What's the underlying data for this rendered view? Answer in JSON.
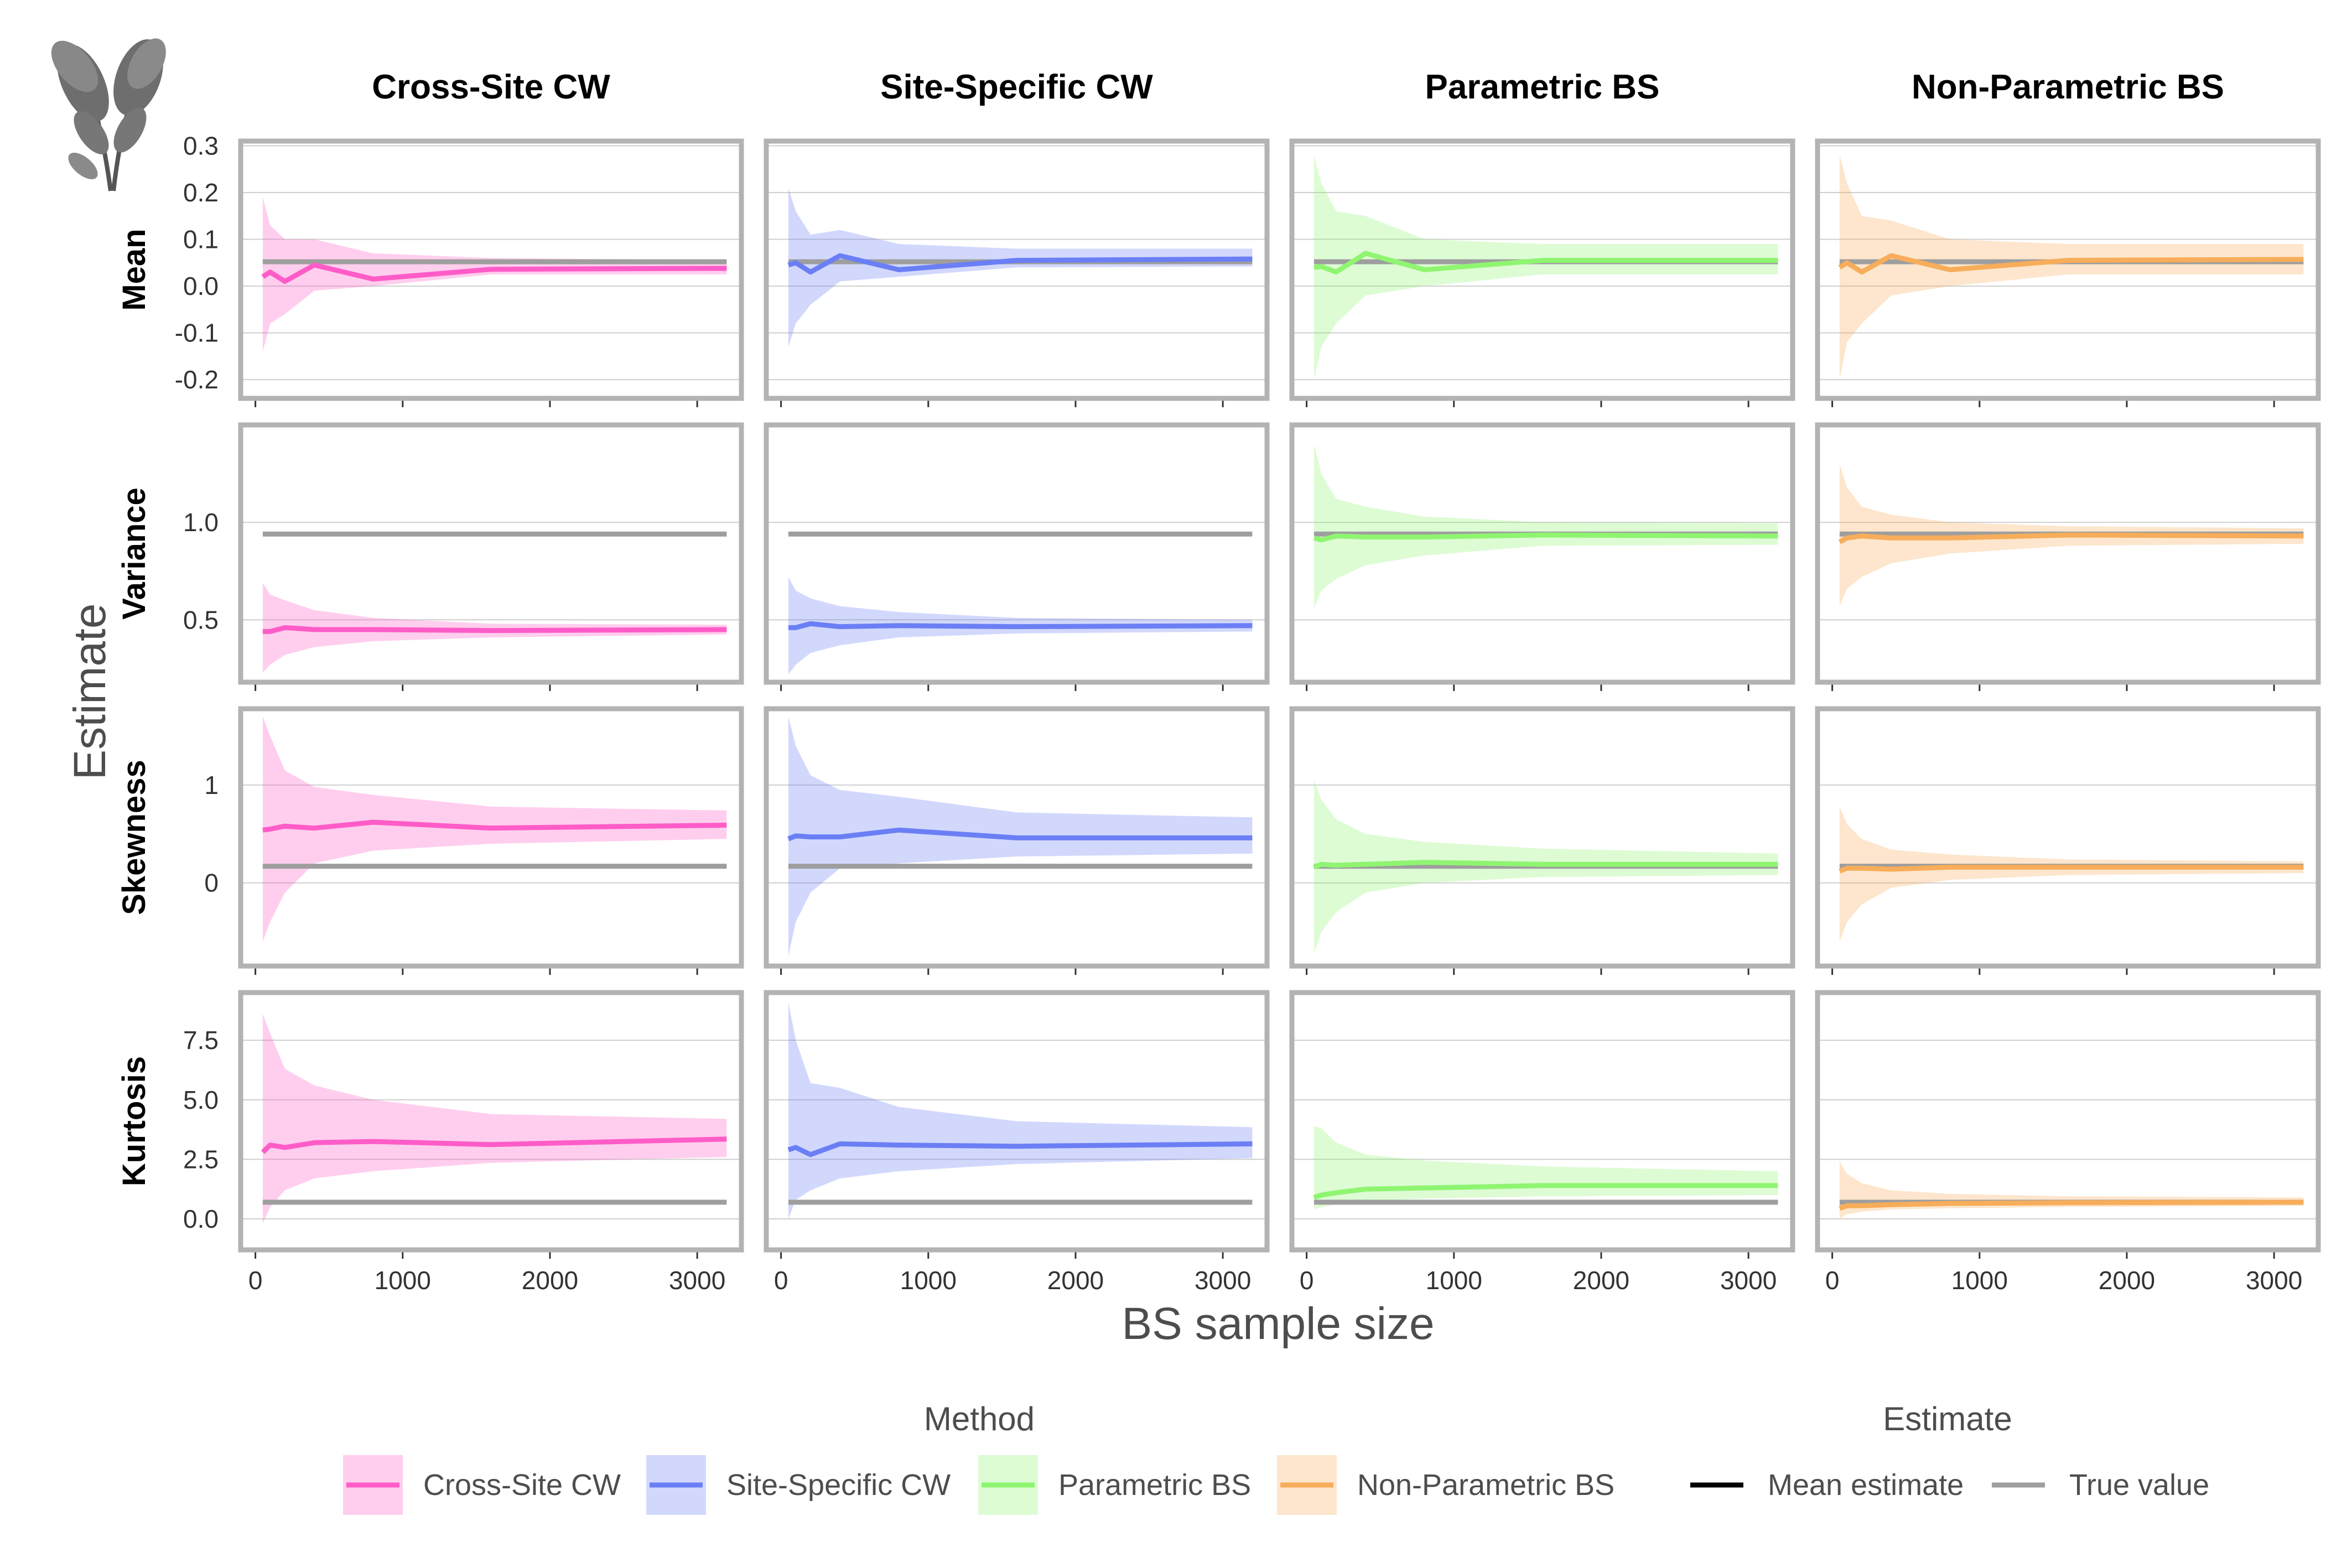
{
  "colors": {
    "Cross-Site CW": "#ff5cc8",
    "Site-Specific CW": "#6b7ff5",
    "Parametric BS": "#8ff571",
    "Non-Parametric BS": "#f7ad5a",
    "true_value": "#9e9e9e",
    "panel_border": "#b3b3b3",
    "grid": "#cfcfcf",
    "mean_legend": "#000000"
  },
  "chart_data": {
    "type": "line",
    "xlabel": "BS sample size",
    "ylabel": "Estimate",
    "columns": [
      "Cross-Site CW",
      "Site-Specific CW",
      "Parametric BS",
      "Non-Parametric BS"
    ],
    "rows": [
      "Mean",
      "Variance",
      "Skewness",
      "Kurtosis"
    ],
    "x": [
      50,
      100,
      200,
      400,
      800,
      1600,
      3200
    ],
    "xlim": [
      -100,
      3300
    ],
    "x_ticks": [
      0,
      1000,
      2000,
      3000
    ],
    "x_tick_labels": [
      "0",
      "1000",
      "2000",
      "3000"
    ],
    "grid": true,
    "y_axes": {
      "Mean": {
        "ylim": [
          -0.24,
          0.31
        ],
        "ticks": [
          0.3,
          0.2,
          0.1,
          0.0,
          -0.1,
          -0.2
        ],
        "tick_labels": [
          "0.3",
          "0.2",
          "0.1",
          "0.0",
          "-0.1",
          "-0.2"
        ]
      },
      "Variance": {
        "ylim": [
          0.18,
          1.5
        ],
        "ticks": [
          1.0,
          0.5
        ],
        "tick_labels": [
          "1.0",
          "0.5"
        ]
      },
      "Skewness": {
        "ylim": [
          -0.85,
          1.78
        ],
        "ticks": [
          1,
          0
        ],
        "tick_labels": [
          "1",
          "0"
        ]
      },
      "Kurtosis": {
        "ylim": [
          -1.3,
          9.5
        ],
        "ticks": [
          7.5,
          5.0,
          2.5,
          0.0
        ],
        "tick_labels": [
          "7.5",
          "5.0",
          "2.5",
          "0.0"
        ]
      }
    },
    "true_values": {
      "Mean": 0.052,
      "Variance": 0.94,
      "Skewness": 0.17,
      "Kurtosis": 0.7
    },
    "panels": {
      "Cross-Site CW": {
        "Mean": {
          "mean": [
            0.02,
            0.03,
            0.01,
            0.045,
            0.015,
            0.036,
            0.038
          ],
          "lower": [
            -0.14,
            -0.08,
            -0.06,
            -0.01,
            0.0,
            0.025,
            0.025
          ],
          "upper": [
            0.19,
            0.13,
            0.1,
            0.1,
            0.07,
            0.06,
            0.055
          ]
        },
        "Variance": {
          "mean": [
            0.44,
            0.44,
            0.46,
            0.45,
            0.45,
            0.445,
            0.45
          ],
          "lower": [
            0.23,
            0.27,
            0.32,
            0.36,
            0.39,
            0.41,
            0.425
          ],
          "upper": [
            0.69,
            0.63,
            0.6,
            0.55,
            0.51,
            0.48,
            0.475
          ]
        },
        "Skewness": {
          "mean": [
            0.54,
            0.55,
            0.58,
            0.56,
            0.62,
            0.56,
            0.59
          ],
          "lower": [
            -0.6,
            -0.4,
            -0.1,
            0.2,
            0.33,
            0.4,
            0.45
          ],
          "upper": [
            1.7,
            1.5,
            1.15,
            0.98,
            0.9,
            0.78,
            0.74
          ]
        },
        "Kurtosis": {
          "mean": [
            2.8,
            3.1,
            3.0,
            3.2,
            3.25,
            3.12,
            3.35
          ],
          "lower": [
            -0.2,
            0.5,
            1.2,
            1.7,
            2.0,
            2.35,
            2.6
          ],
          "upper": [
            8.6,
            7.8,
            6.3,
            5.6,
            5.0,
            4.4,
            4.2
          ]
        }
      },
      "Site-Specific CW": {
        "Mean": {
          "mean": [
            0.045,
            0.05,
            0.03,
            0.065,
            0.035,
            0.055,
            0.058
          ],
          "lower": [
            -0.13,
            -0.08,
            -0.04,
            0.01,
            0.02,
            0.04,
            0.042
          ],
          "upper": [
            0.21,
            0.16,
            0.11,
            0.12,
            0.09,
            0.08,
            0.08
          ]
        },
        "Variance": {
          "mean": [
            0.46,
            0.46,
            0.48,
            0.465,
            0.47,
            0.465,
            0.47
          ],
          "lower": [
            0.22,
            0.27,
            0.33,
            0.37,
            0.41,
            0.43,
            0.44
          ],
          "upper": [
            0.72,
            0.65,
            0.61,
            0.57,
            0.54,
            0.51,
            0.5
          ]
        },
        "Skewness": {
          "mean": [
            0.45,
            0.48,
            0.47,
            0.47,
            0.54,
            0.46,
            0.46
          ],
          "lower": [
            -0.75,
            -0.4,
            -0.1,
            0.15,
            0.2,
            0.27,
            0.3
          ],
          "upper": [
            1.7,
            1.4,
            1.1,
            0.95,
            0.88,
            0.72,
            0.67
          ]
        },
        "Kurtosis": {
          "mean": [
            2.9,
            3.0,
            2.7,
            3.15,
            3.1,
            3.05,
            3.15
          ],
          "lower": [
            0.0,
            0.8,
            1.2,
            1.7,
            2.0,
            2.3,
            2.55
          ],
          "upper": [
            9.1,
            7.5,
            5.7,
            5.5,
            4.7,
            4.1,
            3.85
          ]
        }
      },
      "Parametric BS": {
        "Mean": {
          "mean": [
            0.04,
            0.042,
            0.03,
            0.07,
            0.035,
            0.055,
            0.055
          ],
          "lower": [
            -0.2,
            -0.13,
            -0.08,
            -0.02,
            0.0,
            0.025,
            0.025
          ],
          "upper": [
            0.28,
            0.22,
            0.16,
            0.15,
            0.1,
            0.09,
            0.09
          ]
        },
        "Variance": {
          "mean": [
            0.92,
            0.91,
            0.93,
            0.925,
            0.925,
            0.935,
            0.93
          ],
          "lower": [
            0.56,
            0.65,
            0.71,
            0.78,
            0.83,
            0.88,
            0.885
          ],
          "upper": [
            1.4,
            1.25,
            1.12,
            1.08,
            1.03,
            1.0,
            0.995
          ]
        },
        "Skewness": {
          "mean": [
            0.16,
            0.19,
            0.18,
            0.19,
            0.21,
            0.19,
            0.19
          ],
          "lower": [
            -0.72,
            -0.5,
            -0.3,
            -0.1,
            0.0,
            0.06,
            0.08
          ],
          "upper": [
            1.05,
            0.85,
            0.65,
            0.5,
            0.42,
            0.35,
            0.3
          ]
        },
        "Kurtosis": {
          "mean": [
            0.9,
            1.0,
            1.1,
            1.25,
            1.3,
            1.4,
            1.4
          ],
          "lower": [
            0.4,
            0.5,
            0.6,
            0.75,
            0.85,
            0.95,
            1.0
          ],
          "upper": [
            3.9,
            3.8,
            3.2,
            2.7,
            2.45,
            2.2,
            2.0
          ]
        }
      },
      "Non-Parametric BS": {
        "Mean": {
          "mean": [
            0.04,
            0.05,
            0.03,
            0.065,
            0.035,
            0.055,
            0.057
          ],
          "lower": [
            -0.2,
            -0.12,
            -0.08,
            -0.02,
            0.0,
            0.025,
            0.025
          ],
          "upper": [
            0.28,
            0.22,
            0.15,
            0.14,
            0.1,
            0.09,
            0.09
          ]
        },
        "Variance": {
          "mean": [
            0.9,
            0.92,
            0.93,
            0.92,
            0.92,
            0.935,
            0.93
          ],
          "lower": [
            0.57,
            0.66,
            0.72,
            0.79,
            0.84,
            0.88,
            0.89
          ],
          "upper": [
            1.3,
            1.18,
            1.08,
            1.04,
            1.0,
            0.98,
            0.97
          ]
        },
        "Skewness": {
          "mean": [
            0.12,
            0.15,
            0.15,
            0.14,
            0.16,
            0.16,
            0.16
          ],
          "lower": [
            -0.6,
            -0.4,
            -0.22,
            -0.05,
            0.03,
            0.08,
            0.1
          ],
          "upper": [
            0.78,
            0.6,
            0.45,
            0.34,
            0.29,
            0.24,
            0.22
          ]
        },
        "Kurtosis": {
          "mean": [
            0.45,
            0.55,
            0.55,
            0.6,
            0.65,
            0.68,
            0.7
          ],
          "lower": [
            0.0,
            0.2,
            0.3,
            0.4,
            0.45,
            0.5,
            0.55
          ],
          "upper": [
            2.4,
            1.9,
            1.5,
            1.2,
            1.05,
            0.95,
            0.9
          ]
        }
      }
    },
    "legend": {
      "method_title": "Method",
      "methods": [
        "Cross-Site CW",
        "Site-Specific CW",
        "Parametric BS",
        "Non-Parametric BS"
      ],
      "estimate_title": "Estimate",
      "estimates": [
        "Mean estimate",
        "True value"
      ],
      "position": "bottom"
    }
  }
}
